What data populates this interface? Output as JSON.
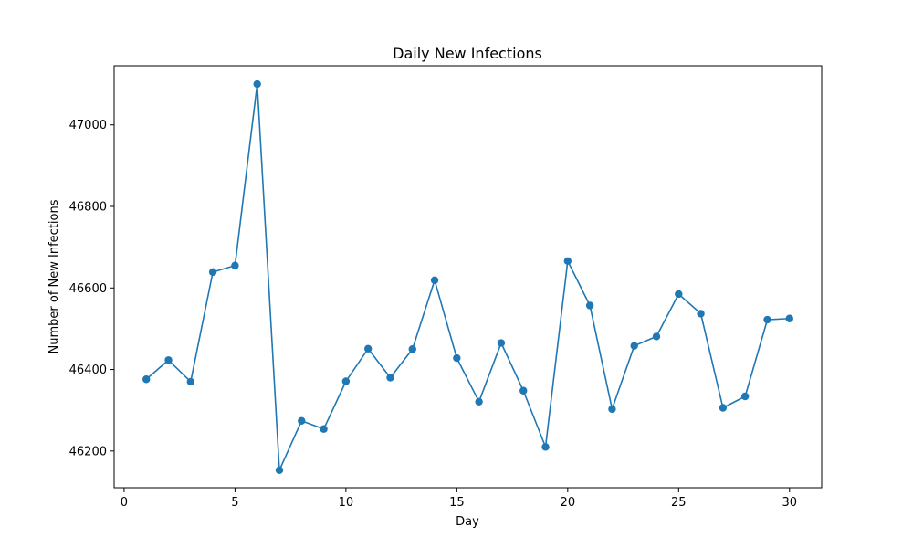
{
  "chart_data": {
    "type": "line",
    "title": "Daily New Infections",
    "xlabel": "Day",
    "ylabel": "Number of New Infections",
    "xlim": [
      -0.45,
      31.45
    ],
    "ylim": [
      46110,
      47145
    ],
    "x_ticks": [
      0,
      5,
      10,
      15,
      20,
      25,
      30
    ],
    "y_ticks": [
      46200,
      46400,
      46600,
      46800,
      47000
    ],
    "grid": false,
    "color": "#1f77b4",
    "series": [
      {
        "x": [
          1,
          2,
          3,
          4,
          5,
          6,
          7,
          8,
          9,
          10,
          11,
          12,
          13,
          14,
          15,
          16,
          17,
          18,
          19,
          20,
          21,
          22,
          23,
          24,
          25,
          26,
          27,
          28,
          29,
          30
        ],
        "values": [
          46376,
          46423,
          46370,
          46639,
          46655,
          47100,
          46153,
          46274,
          46254,
          46371,
          46451,
          46380,
          46450,
          46619,
          46428,
          46321,
          46465,
          46348,
          46210,
          46666,
          46557,
          46303,
          46458,
          46481,
          46585,
          46537,
          46306,
          46334,
          46522,
          46525
        ]
      }
    ]
  }
}
